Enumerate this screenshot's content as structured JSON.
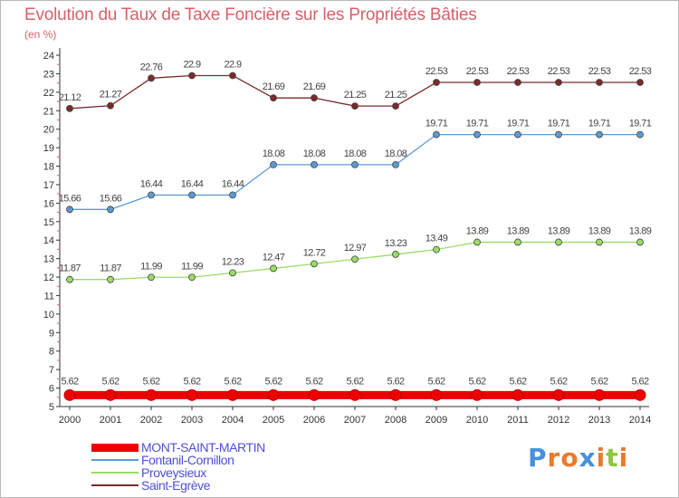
{
  "chart_data": {
    "type": "line",
    "title": "Evolution du Taux de Taxe Foncière sur les Propriétés Bâties",
    "unit_label": "(en %)",
    "x": [
      "2000",
      "2001",
      "2002",
      "2003",
      "2004",
      "2005",
      "2006",
      "2007",
      "2008",
      "2009",
      "2010",
      "2011",
      "2012",
      "2013",
      "2014"
    ],
    "ylim": [
      5,
      24
    ],
    "yticks": [
      5,
      6,
      7,
      8,
      9,
      10,
      11,
      12,
      13,
      14,
      15,
      16,
      17,
      18,
      19,
      20,
      21,
      22,
      23,
      24
    ],
    "grid": false,
    "legend_position": "bottom-left",
    "series": [
      {
        "name": "MONT-SAINT-MARTIN",
        "color": "#ee0000",
        "values": [
          5.62,
          5.62,
          5.62,
          5.62,
          5.62,
          5.62,
          5.62,
          5.62,
          5.62,
          5.62,
          5.62,
          5.62,
          5.62,
          5.62,
          5.62
        ],
        "labels": [
          "5.62",
          "5.62",
          "5.62",
          "5.62",
          "5.62",
          "5.62",
          "5.62",
          "5.62",
          "5.62",
          "5.62",
          "5.62",
          "5.62",
          "5.62",
          "5.62",
          "5.62"
        ]
      },
      {
        "name": "Fontanil-Cornillon",
        "color": "#5b9bd5",
        "values": [
          15.66,
          15.66,
          16.44,
          16.44,
          16.44,
          18.08,
          18.08,
          18.08,
          18.08,
          19.71,
          19.71,
          19.71,
          19.71,
          19.71,
          19.71
        ],
        "labels": [
          "15.66",
          "15.66",
          "16.44",
          "16.44",
          "16.44",
          "18.08",
          "18.08",
          "18.08",
          "18.08",
          "19.71",
          "19.71",
          "19.71",
          "19.71",
          "19.71",
          "19.71"
        ]
      },
      {
        "name": "Proveysieux",
        "color": "#99dd66",
        "values": [
          11.87,
          11.87,
          11.99,
          11.99,
          12.23,
          12.47,
          12.72,
          12.97,
          13.23,
          13.49,
          13.89,
          13.89,
          13.89,
          13.89,
          13.89
        ],
        "labels": [
          "11.87",
          "11.87",
          "11.99",
          "11.99",
          "12.23",
          "12.47",
          "12.72",
          "12.97",
          "13.23",
          "13.49",
          "13.89",
          "13.89",
          "13.89",
          "13.89",
          "13.89"
        ]
      },
      {
        "name": "Saint-Egrève",
        "color": "#7a2a2a",
        "values": [
          21.12,
          21.27,
          22.76,
          22.9,
          22.9,
          21.69,
          21.69,
          21.25,
          21.25,
          22.53,
          22.53,
          22.53,
          22.53,
          22.53,
          22.53
        ],
        "labels": [
          "21.12",
          "21.27",
          "22.76",
          "22.9",
          "22.9",
          "21.69",
          "21.69",
          "21.25",
          "21.25",
          "22.53",
          "22.53",
          "22.53",
          "22.53",
          "22.53",
          "22.53"
        ]
      }
    ]
  },
  "logo": {
    "letters": [
      "P",
      "r",
      "o",
      "x",
      "i",
      "t",
      "i"
    ],
    "colors": [
      "#4a90d9",
      "#e87b2e",
      "#e87b2e",
      "#4a90d9",
      "#e87b2e",
      "#8dc63f",
      "#e87b2e"
    ]
  }
}
